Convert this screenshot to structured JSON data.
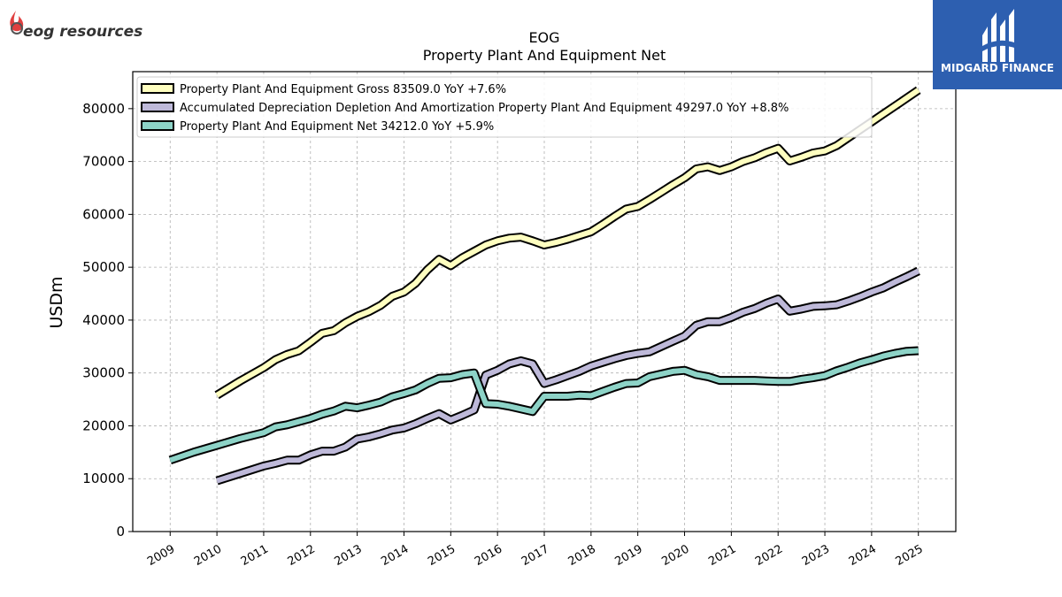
{
  "header": {
    "company_logo_text": "eog resources",
    "brand_logo_text": "MIDGARD FINANCE"
  },
  "colors": {
    "gross": "#ffffc0",
    "depreciation": "#beb9d9",
    "net": "#8dd3c7",
    "outline": "#000000",
    "brand_background": "#2d5fb0"
  },
  "chart_data": {
    "type": "line",
    "title": "EOG",
    "subtitle": "Property Plant And Equipment Net",
    "xlabel": "",
    "ylabel": "USDm",
    "xlim": [
      2008.2,
      2025.8
    ],
    "ylim": [
      0,
      87000
    ],
    "grid": true,
    "legend_position": "top-left",
    "x_ticks": [
      "2009",
      "2010",
      "2011",
      "2012",
      "2013",
      "2014",
      "2015",
      "2016",
      "2017",
      "2018",
      "2019",
      "2020",
      "2021",
      "2022",
      "2023",
      "2024",
      "2025"
    ],
    "y_ticks": [
      "0",
      "10000",
      "20000",
      "30000",
      "40000",
      "50000",
      "60000",
      "70000",
      "80000"
    ],
    "series": [
      {
        "name": "Property Plant And Equipment Gross  83509.0 YoY +7.6%",
        "color_key": "gross",
        "points": [
          [
            2010.0,
            25800
          ],
          [
            2010.5,
            28500
          ],
          [
            2011.0,
            31000
          ],
          [
            2011.25,
            32500
          ],
          [
            2011.5,
            33500
          ],
          [
            2011.75,
            34200
          ],
          [
            2012.0,
            35800
          ],
          [
            2012.25,
            37500
          ],
          [
            2012.5,
            38000
          ],
          [
            2012.75,
            39500
          ],
          [
            2013.0,
            40700
          ],
          [
            2013.25,
            41600
          ],
          [
            2013.5,
            42800
          ],
          [
            2013.75,
            44500
          ],
          [
            2014.0,
            45300
          ],
          [
            2014.25,
            47000
          ],
          [
            2014.5,
            49500
          ],
          [
            2014.75,
            51500
          ],
          [
            2015.0,
            50300
          ],
          [
            2015.25,
            51800
          ],
          [
            2015.5,
            53000
          ],
          [
            2015.75,
            54200
          ],
          [
            2016.0,
            55000
          ],
          [
            2016.25,
            55500
          ],
          [
            2016.5,
            55700
          ],
          [
            2016.75,
            55000
          ],
          [
            2017.0,
            54200
          ],
          [
            2017.25,
            54700
          ],
          [
            2017.5,
            55300
          ],
          [
            2017.75,
            56000
          ],
          [
            2018.0,
            56700
          ],
          [
            2018.25,
            58100
          ],
          [
            2018.5,
            59600
          ],
          [
            2018.75,
            61000
          ],
          [
            2019.0,
            61500
          ],
          [
            2019.25,
            62800
          ],
          [
            2019.5,
            64200
          ],
          [
            2019.75,
            65600
          ],
          [
            2020.0,
            66900
          ],
          [
            2020.25,
            68600
          ],
          [
            2020.5,
            69000
          ],
          [
            2020.75,
            68300
          ],
          [
            2021.0,
            69000
          ],
          [
            2021.25,
            70000
          ],
          [
            2021.5,
            70700
          ],
          [
            2021.75,
            71700
          ],
          [
            2022.0,
            72500
          ],
          [
            2022.25,
            70100
          ],
          [
            2022.5,
            70800
          ],
          [
            2022.75,
            71600
          ],
          [
            2023.0,
            72000
          ],
          [
            2023.25,
            73000
          ],
          [
            2023.5,
            74500
          ],
          [
            2023.75,
            76000
          ],
          [
            2024.0,
            77500
          ],
          [
            2024.25,
            79000
          ],
          [
            2024.5,
            80500
          ],
          [
            2024.75,
            82000
          ],
          [
            2025.0,
            83509
          ]
        ]
      },
      {
        "name": "Accumulated Depreciation Depletion And Amortization Property Plant And Equipment  49297.0 YoY +8.8%",
        "color_key": "depreciation",
        "points": [
          [
            2010.0,
            9600
          ],
          [
            2010.5,
            11000
          ],
          [
            2011.0,
            12400
          ],
          [
            2011.25,
            12900
          ],
          [
            2011.5,
            13500
          ],
          [
            2011.75,
            13500
          ],
          [
            2012.0,
            14500
          ],
          [
            2012.25,
            15200
          ],
          [
            2012.5,
            15200
          ],
          [
            2012.75,
            16000
          ],
          [
            2013.0,
            17500
          ],
          [
            2013.25,
            17900
          ],
          [
            2013.5,
            18500
          ],
          [
            2013.75,
            19200
          ],
          [
            2014.0,
            19600
          ],
          [
            2014.25,
            20400
          ],
          [
            2014.5,
            21400
          ],
          [
            2014.75,
            22300
          ],
          [
            2015.0,
            21100
          ],
          [
            2015.25,
            22000
          ],
          [
            2015.5,
            23000
          ],
          [
            2015.75,
            29600
          ],
          [
            2016.0,
            30500
          ],
          [
            2016.25,
            31700
          ],
          [
            2016.5,
            32300
          ],
          [
            2016.75,
            31700
          ],
          [
            2017.0,
            28000
          ],
          [
            2017.25,
            28700
          ],
          [
            2017.5,
            29500
          ],
          [
            2017.75,
            30300
          ],
          [
            2018.0,
            31300
          ],
          [
            2018.25,
            32000
          ],
          [
            2018.5,
            32700
          ],
          [
            2018.75,
            33300
          ],
          [
            2019.0,
            33700
          ],
          [
            2019.25,
            34000
          ],
          [
            2019.5,
            35000
          ],
          [
            2019.75,
            36000
          ],
          [
            2020.0,
            37000
          ],
          [
            2020.25,
            39000
          ],
          [
            2020.5,
            39700
          ],
          [
            2020.75,
            39700
          ],
          [
            2021.0,
            40500
          ],
          [
            2021.25,
            41500
          ],
          [
            2021.5,
            42200
          ],
          [
            2021.75,
            43200
          ],
          [
            2022.0,
            44000
          ],
          [
            2022.25,
            41700
          ],
          [
            2022.5,
            42100
          ],
          [
            2022.75,
            42600
          ],
          [
            2023.0,
            42700
          ],
          [
            2023.25,
            42900
          ],
          [
            2023.5,
            43600
          ],
          [
            2023.75,
            44400
          ],
          [
            2024.0,
            45300
          ],
          [
            2024.25,
            46100
          ],
          [
            2024.5,
            47200
          ],
          [
            2024.75,
            48200
          ],
          [
            2025.0,
            49297
          ]
        ]
      },
      {
        "name": "Property Plant And Equipment Net  34212.0 YoY +5.9%",
        "color_key": "net",
        "points": [
          [
            2009.0,
            13500
          ],
          [
            2009.5,
            15000
          ],
          [
            2010.0,
            16300
          ],
          [
            2010.5,
            17600
          ],
          [
            2011.0,
            18700
          ],
          [
            2011.25,
            19800
          ],
          [
            2011.5,
            20200
          ],
          [
            2011.75,
            20800
          ],
          [
            2012.0,
            21400
          ],
          [
            2012.25,
            22200
          ],
          [
            2012.5,
            22800
          ],
          [
            2012.75,
            23700
          ],
          [
            2013.0,
            23400
          ],
          [
            2013.25,
            23900
          ],
          [
            2013.5,
            24500
          ],
          [
            2013.75,
            25500
          ],
          [
            2014.0,
            26100
          ],
          [
            2014.25,
            26800
          ],
          [
            2014.5,
            28000
          ],
          [
            2014.75,
            29000
          ],
          [
            2015.0,
            29100
          ],
          [
            2015.25,
            29700
          ],
          [
            2015.5,
            30000
          ],
          [
            2015.75,
            24200
          ],
          [
            2016.0,
            24100
          ],
          [
            2016.25,
            23700
          ],
          [
            2016.5,
            23200
          ],
          [
            2016.75,
            22700
          ],
          [
            2017.0,
            25600
          ],
          [
            2017.25,
            25600
          ],
          [
            2017.5,
            25600
          ],
          [
            2017.75,
            25800
          ],
          [
            2018.0,
            25700
          ],
          [
            2018.25,
            26500
          ],
          [
            2018.5,
            27300
          ],
          [
            2018.75,
            28000
          ],
          [
            2019.0,
            28100
          ],
          [
            2019.25,
            29300
          ],
          [
            2019.5,
            29800
          ],
          [
            2019.75,
            30300
          ],
          [
            2020.0,
            30500
          ],
          [
            2020.25,
            29700
          ],
          [
            2020.5,
            29300
          ],
          [
            2020.75,
            28600
          ],
          [
            2021.0,
            28600
          ],
          [
            2021.25,
            28600
          ],
          [
            2021.5,
            28600
          ],
          [
            2021.75,
            28500
          ],
          [
            2022.0,
            28400
          ],
          [
            2022.25,
            28400
          ],
          [
            2022.5,
            28800
          ],
          [
            2022.75,
            29100
          ],
          [
            2023.0,
            29500
          ],
          [
            2023.25,
            30400
          ],
          [
            2023.5,
            31100
          ],
          [
            2023.75,
            31900
          ],
          [
            2024.0,
            32500
          ],
          [
            2024.25,
            33200
          ],
          [
            2024.5,
            33700
          ],
          [
            2024.75,
            34100
          ],
          [
            2025.0,
            34212
          ]
        ]
      }
    ]
  }
}
